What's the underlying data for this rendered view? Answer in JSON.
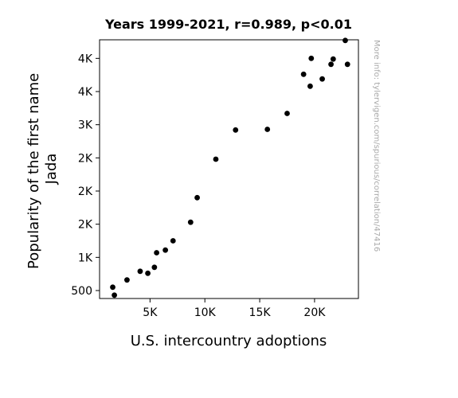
{
  "chart_data": {
    "type": "scatter",
    "title": "Years 1999-2021, r=0.989, p<0.01",
    "xlabel": "U.S. intercountry adoptions",
    "ylabel_lines": [
      "Popularity of the first name",
      "Jada"
    ],
    "watermark": "More info: tylervigen.com/spurious/correlation/47416",
    "xlim": [
      400,
      24000
    ],
    "ylim": [
      380,
      4280
    ],
    "x_ticks": [
      {
        "value": 5000,
        "label": "5K"
      },
      {
        "value": 10000,
        "label": "10K"
      },
      {
        "value": 15000,
        "label": "15K"
      },
      {
        "value": 20000,
        "label": "20K"
      }
    ],
    "y_ticks": [
      {
        "value": 500,
        "label": "500"
      },
      {
        "value": 1000,
        "label": "1K"
      },
      {
        "value": 1500,
        "label": "2K"
      },
      {
        "value": 2000,
        "label": "2K"
      },
      {
        "value": 2500,
        "label": "2K"
      },
      {
        "value": 3000,
        "label": "3K"
      },
      {
        "value": 3500,
        "label": "4K"
      },
      {
        "value": 4000,
        "label": "4K"
      }
    ],
    "grid": false,
    "legend": "none",
    "point_color": "#000000",
    "points": [
      {
        "x": 1600,
        "y": 550
      },
      {
        "x": 1750,
        "y": 430
      },
      {
        "x": 2900,
        "y": 660
      },
      {
        "x": 4100,
        "y": 790
      },
      {
        "x": 4800,
        "y": 760
      },
      {
        "x": 5400,
        "y": 850
      },
      {
        "x": 5600,
        "y": 1070
      },
      {
        "x": 6400,
        "y": 1110
      },
      {
        "x": 7100,
        "y": 1250
      },
      {
        "x": 8700,
        "y": 1530
      },
      {
        "x": 9300,
        "y": 1900
      },
      {
        "x": 11000,
        "y": 2480
      },
      {
        "x": 12800,
        "y": 2920
      },
      {
        "x": 15700,
        "y": 2930
      },
      {
        "x": 17500,
        "y": 3170
      },
      {
        "x": 19000,
        "y": 3760
      },
      {
        "x": 19600,
        "y": 3580
      },
      {
        "x": 19700,
        "y": 4000
      },
      {
        "x": 20700,
        "y": 3690
      },
      {
        "x": 21500,
        "y": 3910
      },
      {
        "x": 21700,
        "y": 3990
      },
      {
        "x": 22800,
        "y": 4270
      },
      {
        "x": 23000,
        "y": 3910
      }
    ]
  }
}
